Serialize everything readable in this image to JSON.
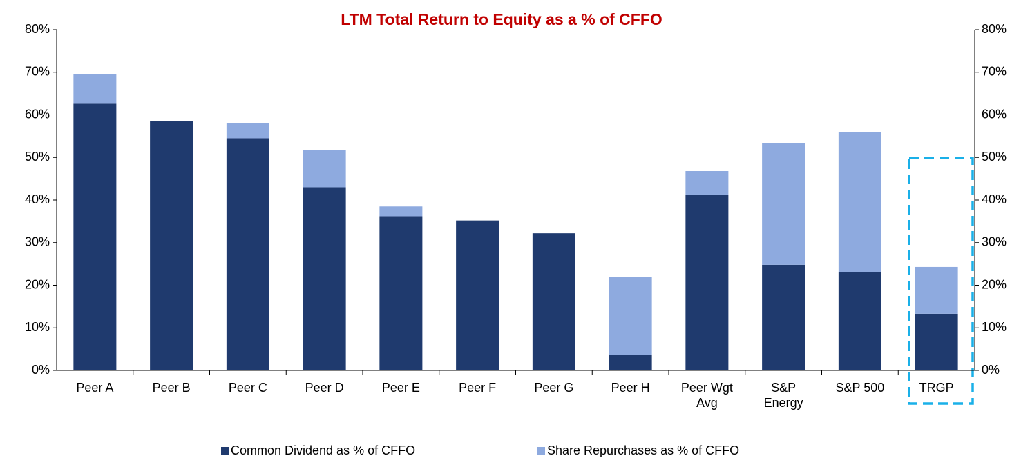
{
  "chart_data": {
    "type": "stacked_bar",
    "title": "LTM Total Return to Equity as a % of CFFO",
    "categories": [
      "Peer A",
      "Peer B",
      "Peer C",
      "Peer D",
      "Peer E",
      "Peer F",
      "Peer G",
      "Peer H",
      "Peer Wgt Avg",
      "S&P Energy",
      "S&P 500",
      "TRGP"
    ],
    "series": [
      {
        "name": "Common Dividend as % of CFFO",
        "color": "#1f3a6e",
        "values": [
          62.6,
          58.5,
          54.5,
          43.0,
          36.2,
          35.2,
          32.2,
          3.7,
          41.3,
          24.8,
          23.0,
          13.3
        ]
      },
      {
        "name": "Share Repurchases as % of CFFO",
        "color": "#8eaadf",
        "values": [
          7.0,
          0,
          3.6,
          8.7,
          2.3,
          0,
          0,
          18.3,
          5.5,
          28.5,
          33.0,
          11.0
        ]
      }
    ],
    "ylim": [
      0,
      80
    ],
    "yticks": [
      {
        "value": 0,
        "label": "0%"
      },
      {
        "value": 10,
        "label": "10%"
      },
      {
        "value": 20,
        "label": "20%"
      },
      {
        "value": 30,
        "label": "30%"
      },
      {
        "value": 40,
        "label": "40%"
      },
      {
        "value": 50,
        "label": "50%"
      },
      {
        "value": 60,
        "label": "60%"
      },
      {
        "value": 70,
        "label": "70%"
      },
      {
        "value": 80,
        "label": "80%"
      }
    ],
    "y2lim": [
      0,
      80
    ],
    "y2ticks": [
      {
        "value": 0,
        "label": "0%"
      },
      {
        "value": 10,
        "label": "10%"
      },
      {
        "value": 20,
        "label": "20%"
      },
      {
        "value": 30,
        "label": "30%"
      },
      {
        "value": 40,
        "label": "40%"
      },
      {
        "value": 50,
        "label": "50%"
      },
      {
        "value": 60,
        "label": "60%"
      },
      {
        "value": 70,
        "label": "70%"
      },
      {
        "value": 80,
        "label": "80%"
      }
    ],
    "grid": false,
    "legend": "bottom"
  }
}
